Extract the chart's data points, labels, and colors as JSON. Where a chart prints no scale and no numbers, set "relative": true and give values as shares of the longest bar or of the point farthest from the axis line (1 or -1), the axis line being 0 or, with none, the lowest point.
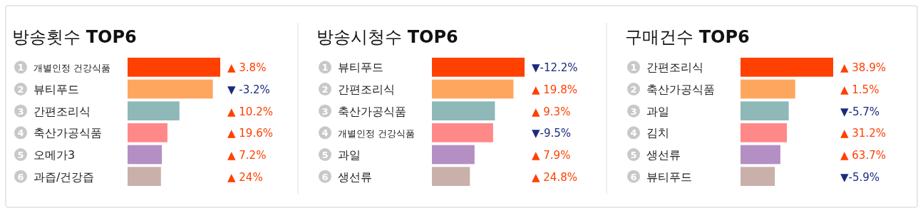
{
  "chart_data": [
    {
      "type": "bar",
      "orientation": "horizontal",
      "relative": true,
      "title": "방송횟수 TOP6",
      "categories": [
        "개별인정 건강식품",
        "뷰티푸드",
        "간편조리식",
        "축산가공식품",
        "오메가3",
        "과즙/건강즙"
      ],
      "values": [
        1,
        0.92,
        0.56,
        0.43,
        0.37,
        0.36
      ],
      "colors": [
        "#ff4000",
        "#ffa65e",
        "#8fb8b8",
        "#ff8888",
        "#b48fc4",
        "#c9b0aa"
      ],
      "annotations": [
        "1",
        "2",
        "3",
        "4",
        "5",
        "6",
        "▲ 3.8%",
        "▼ -3.2%",
        "▲ 10.2%",
        "▲ 19.6%",
        "▲ 7.2%",
        "▲ 24%"
      ]
    },
    {
      "type": "bar",
      "orientation": "horizontal",
      "relative": true,
      "title": "방송시청수 TOP6",
      "categories": [
        "뷰티푸드",
        "간편조리식",
        "축산가공식품",
        "개별인정 건강식품",
        "과일",
        "생선류"
      ],
      "values": [
        1,
        0.88,
        0.68,
        0.66,
        0.46,
        0.41
      ],
      "colors": [
        "#ff4000",
        "#ffa65e",
        "#8fb8b8",
        "#ff8888",
        "#b48fc4",
        "#c9b0aa"
      ],
      "annotations": [
        "1",
        "2",
        "3",
        "4",
        "5",
        "6",
        "▼-12.2%",
        "▲ 19.8%",
        "▲ 9.3%",
        "▼-9.5%",
        "▲ 7.9%",
        "▲ 24.8%"
      ]
    },
    {
      "type": "bar",
      "orientation": "horizontal",
      "relative": true,
      "title": "구매건수 TOP6",
      "categories": [
        "간편조리식",
        "축산가공식품",
        "과일",
        "김치",
        "생선류",
        "뷰티푸드"
      ],
      "values": [
        1,
        0.59,
        0.52,
        0.5,
        0.43,
        0.37
      ],
      "colors": [
        "#ff4000",
        "#ffa65e",
        "#8fb8b8",
        "#ff8888",
        "#b48fc4",
        "#c9b0aa"
      ],
      "annotations": [
        "1",
        "2",
        "3",
        "4",
        "5",
        "6",
        "▲ 38.9%",
        "▲ 1.5%",
        "▼-5.7%",
        "▲ 31.2%",
        "▲ 63.7%",
        "▼-5.9%"
      ]
    }
  ]
}
